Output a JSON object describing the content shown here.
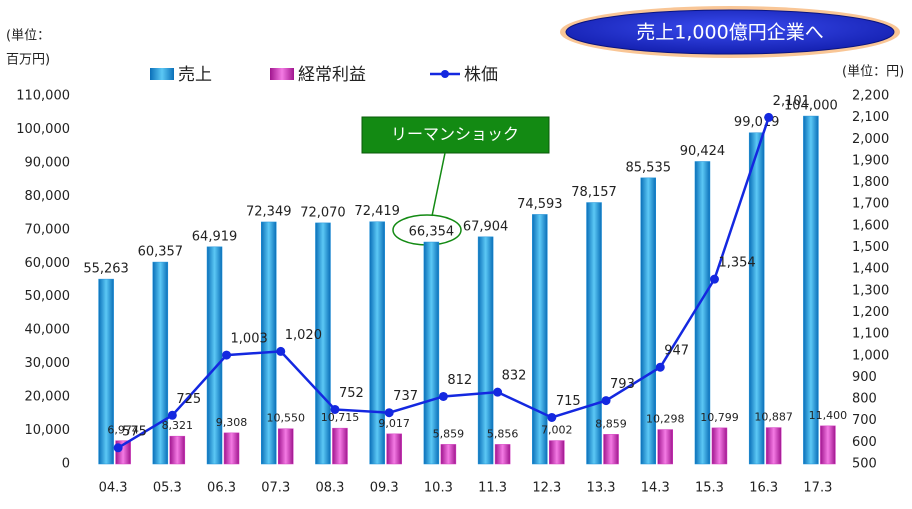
{
  "chart_data": {
    "type": "bar_line",
    "y_label": [
      "(単位：",
      "百万円)"
    ],
    "y2_label": "(単位：円)",
    "annotations": [
      "売上1,000億円企業へ",
      "リーマンショック"
    ],
    "categories": [
      "04.3",
      "05.3",
      "06.3",
      "07.3",
      "08.3",
      "09.3",
      "10.3",
      "11.3",
      "12.3",
      "13.3",
      "14.3",
      "15.3",
      "16.3",
      "17.3"
    ],
    "series": [
      {
        "name": "売上",
        "color": "#1e90d8",
        "type": "bar",
        "values": [
          55263,
          60357,
          64919,
          72349,
          72070,
          72419,
          66354,
          67904,
          74593,
          78157,
          85535,
          90424,
          99019,
          104000
        ],
        "value_labels": [
          "55,263",
          "60,357",
          "64,919",
          "72,349",
          "72,070",
          "72,419",
          "66,354",
          "67,904",
          "74,593",
          "78,157",
          "85,535",
          "90,424",
          "99,019",
          "104,000"
        ]
      },
      {
        "name": "経常利益",
        "color": "#d23cc0",
        "type": "bar",
        "values": [
          6974,
          8321,
          9308,
          10550,
          10715,
          9017,
          5859,
          5856,
          7002,
          8859,
          10298,
          10799,
          10887,
          11400
        ],
        "value_labels": [
          "6,974",
          "8,321",
          "9,308",
          "10,550",
          "10,715",
          "9,017",
          "5,859",
          "5,856",
          "7,002",
          "8,859",
          "10,298",
          "10,799",
          "10,887",
          "11,400"
        ]
      },
      {
        "name": "株価",
        "color": "#1428e0",
        "type": "line",
        "axis": "y2",
        "values": [
          575,
          725,
          1003,
          1020,
          752,
          737,
          812,
          832,
          715,
          793,
          947,
          1354,
          2101,
          null
        ],
        "value_labels": [
          "575",
          "725",
          "1,003",
          "1,020",
          "752",
          "737",
          "812",
          "832",
          "715",
          "793",
          "947",
          "1,354",
          "2,101",
          null
        ]
      }
    ],
    "ylim": [
      0,
      110000
    ],
    "yticks": [
      0,
      {
        "value": 10000,
        "label": "10,000"
      },
      {
        "value": 20000,
        "label": "20,000"
      },
      {
        "value": 30000,
        "label": "30,000"
      },
      {
        "value": 40000,
        "label": "40,000"
      },
      {
        "value": 50000,
        "label": "50,000"
      },
      {
        "value": 60000,
        "label": "60,000"
      },
      {
        "value": 70000,
        "label": "70,000"
      },
      {
        "value": 80000,
        "label": "80,000"
      },
      {
        "value": 90000,
        "label": "90,000"
      },
      {
        "value": 100000,
        "label": "100,000"
      },
      {
        "value": 110000,
        "label": "110,000"
      }
    ],
    "y2lim": [
      500,
      2200
    ],
    "y2ticks": [
      500,
      600,
      700,
      800,
      900,
      {
        "value": 1000,
        "label": "1,000"
      },
      {
        "value": 1100,
        "label": "1,100"
      },
      {
        "value": 1200,
        "label": "1,200"
      },
      {
        "value": 1300,
        "label": "1,300"
      },
      {
        "value": 1400,
        "label": "1,400"
      },
      {
        "value": 1500,
        "label": "1,500"
      },
      {
        "value": 1600,
        "label": "1,600"
      },
      {
        "value": 1700,
        "label": "1,700"
      },
      {
        "value": 1800,
        "label": "1,800"
      },
      {
        "value": 1900,
        "label": "1,900"
      },
      {
        "value": 2000,
        "label": "2,000"
      },
      {
        "value": 2100,
        "label": "2,100"
      },
      {
        "value": 2200,
        "label": "2,200"
      }
    ],
    "legend": "top",
    "grid": false
  }
}
